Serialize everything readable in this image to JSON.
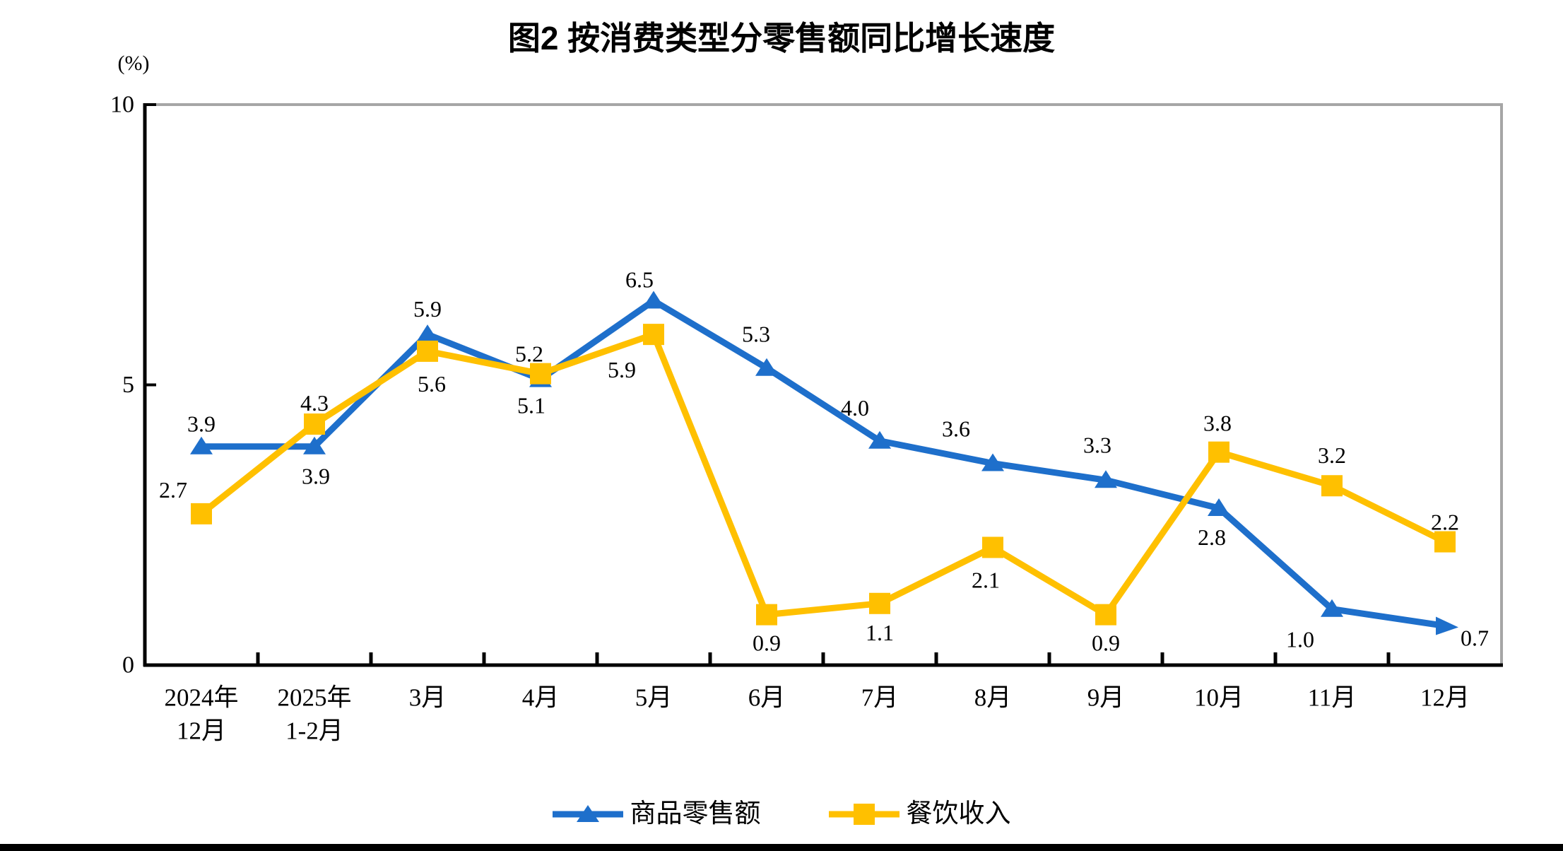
{
  "chart_data": {
    "type": "line",
    "title": "图2  按消费类型分零售额同比增长速度",
    "ylabel": "(%)",
    "ylim": [
      0,
      10
    ],
    "yticks": [
      0,
      5,
      10
    ],
    "grid": false,
    "legend_position": "bottom",
    "axis_color": "#000000",
    "border_color": "#A6A6A6",
    "background": "#FFFFFF",
    "categories": [
      [
        "2024年",
        "12月"
      ],
      [
        "2025年",
        "1-2月"
      ],
      [
        "3月"
      ],
      [
        "4月"
      ],
      [
        "5月"
      ],
      [
        "6月"
      ],
      [
        "7月"
      ],
      [
        "8月"
      ],
      [
        "9月"
      ],
      [
        "10月"
      ],
      [
        "11月"
      ],
      [
        "12月"
      ]
    ],
    "series": [
      {
        "key": "goods-retail",
        "name": "商品零售额",
        "color": "#1E6FCB",
        "marker": "triangle-marker",
        "end_marker": "arrow-right-marker",
        "values": [
          3.9,
          3.9,
          5.9,
          5.1,
          6.5,
          5.3,
          4.0,
          3.6,
          3.3,
          2.8,
          1.0,
          0.7
        ],
        "label_offsets": [
          [
            0,
            -32
          ],
          [
            2,
            42
          ],
          [
            0,
            -36
          ],
          [
            -13,
            37
          ],
          [
            -20,
            -30
          ],
          [
            -15,
            -48
          ],
          [
            -35,
            -47
          ],
          [
            -52,
            -49
          ],
          [
            -12,
            -50
          ],
          [
            -10,
            41
          ],
          [
            -45,
            43
          ],
          [
            42,
            17
          ]
        ]
      },
      {
        "key": "catering-revenue",
        "name": "餐饮收入",
        "color": "#FFC000",
        "marker": "square-marker",
        "values": [
          2.7,
          4.3,
          5.6,
          5.2,
          5.9,
          0.9,
          1.1,
          2.1,
          0.9,
          3.8,
          3.2,
          2.2
        ],
        "label_offsets": [
          [
            -40,
            -34
          ],
          [
            0,
            -30
          ],
          [
            6,
            46
          ],
          [
            -16,
            -28
          ],
          [
            -45,
            50
          ],
          [
            0,
            40
          ],
          [
            0,
            41
          ],
          [
            -10,
            46
          ],
          [
            0,
            40
          ],
          [
            -2,
            -41
          ],
          [
            0,
            -43
          ],
          [
            0,
            -28
          ]
        ]
      }
    ]
  }
}
